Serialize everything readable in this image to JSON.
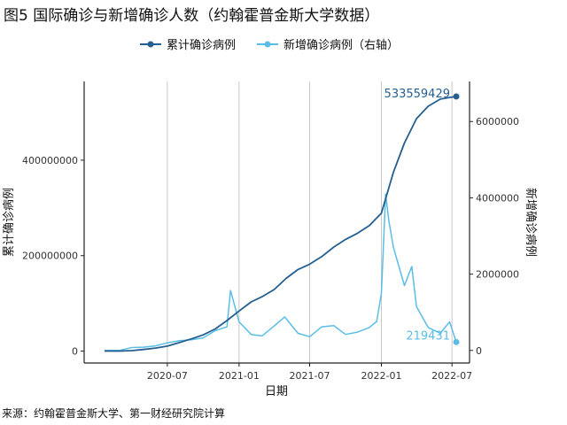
{
  "page": {
    "title": "图5 国际确诊与新增确诊人数（约翰霍普金斯大学数据）",
    "source": "来源：约翰霍普金斯大学、第一财经研究院计算"
  },
  "colors": {
    "cumulative": "#245f8f",
    "daily": "#5bbde6",
    "grid": "#c8c8c8",
    "axis": "#222222"
  },
  "chart_data": {
    "type": "line",
    "title": "",
    "xlabel": "日期",
    "ylabel_left": "累计确诊病例",
    "ylabel_right": "新增确诊病例",
    "x_range": [
      "2020-01-22",
      "2022-07-12"
    ],
    "x_ticks": [
      "2020-07",
      "2021-01",
      "2021-07",
      "2022-01",
      "2022-07"
    ],
    "y_left_ticks": [
      0,
      200000000,
      400000000
    ],
    "y_left_range": [
      -25000000,
      565000000
    ],
    "y_right_ticks": [
      0,
      2000000,
      4000000,
      6000000
    ],
    "y_right_range": [
      -330000,
      7050000
    ],
    "grid": "vertical",
    "legend": {
      "position": "top"
    },
    "legend_labels": [
      "累计确诊病例",
      "新增确诊病例（右轴）"
    ],
    "end_labels": {
      "cumulative": "533559429",
      "daily": "219431"
    },
    "series": [
      {
        "name": "累计确诊病例",
        "axis": "left",
        "points": [
          [
            "2020-01-22",
            0
          ],
          [
            "2020-03-01",
            90000
          ],
          [
            "2020-04-01",
            900000
          ],
          [
            "2020-05-01",
            3300000
          ],
          [
            "2020-06-01",
            6300000
          ],
          [
            "2020-07-01",
            10500000
          ],
          [
            "2020-08-01",
            17800000
          ],
          [
            "2020-09-01",
            25600000
          ],
          [
            "2020-10-01",
            34000000
          ],
          [
            "2020-11-01",
            46500000
          ],
          [
            "2020-12-01",
            64000000
          ],
          [
            "2021-01-01",
            84000000
          ],
          [
            "2021-02-01",
            103000000
          ],
          [
            "2021-03-01",
            114000000
          ],
          [
            "2021-04-01",
            129000000
          ],
          [
            "2021-05-01",
            152000000
          ],
          [
            "2021-06-01",
            171000000
          ],
          [
            "2021-07-01",
            182000000
          ],
          [
            "2021-08-01",
            198000000
          ],
          [
            "2021-09-01",
            218000000
          ],
          [
            "2021-10-01",
            234000000
          ],
          [
            "2021-11-01",
            247000000
          ],
          [
            "2021-12-01",
            263000000
          ],
          [
            "2022-01-01",
            289000000
          ],
          [
            "2022-02-01",
            375000000
          ],
          [
            "2022-03-01",
            436000000
          ],
          [
            "2022-04-01",
            487000000
          ],
          [
            "2022-05-01",
            513000000
          ],
          [
            "2022-06-01",
            528000000
          ],
          [
            "2022-07-12",
            533559429
          ]
        ]
      },
      {
        "name": "新增确诊病例",
        "axis": "right",
        "points": [
          [
            "2020-01-22",
            0
          ],
          [
            "2020-03-01",
            2000
          ],
          [
            "2020-04-01",
            75000
          ],
          [
            "2020-05-01",
            85000
          ],
          [
            "2020-06-01",
            120000
          ],
          [
            "2020-07-01",
            200000
          ],
          [
            "2020-08-01",
            255000
          ],
          [
            "2020-09-01",
            280000
          ],
          [
            "2020-10-01",
            330000
          ],
          [
            "2020-11-01",
            520000
          ],
          [
            "2020-12-01",
            620000
          ],
          [
            "2020-12-10",
            1570000
          ],
          [
            "2021-01-01",
            750000
          ],
          [
            "2021-02-01",
            420000
          ],
          [
            "2021-03-01",
            380000
          ],
          [
            "2021-04-01",
            640000
          ],
          [
            "2021-04-28",
            880000
          ],
          [
            "2021-06-01",
            450000
          ],
          [
            "2021-07-01",
            360000
          ],
          [
            "2021-08-01",
            620000
          ],
          [
            "2021-09-01",
            650000
          ],
          [
            "2021-10-01",
            420000
          ],
          [
            "2021-11-01",
            480000
          ],
          [
            "2021-12-01",
            600000
          ],
          [
            "2021-12-20",
            760000
          ],
          [
            "2022-01-01",
            1500000
          ],
          [
            "2022-01-12",
            4100000
          ],
          [
            "2022-01-20",
            3400000
          ],
          [
            "2022-02-01",
            2700000
          ],
          [
            "2022-03-01",
            1700000
          ],
          [
            "2022-03-20",
            2200000
          ],
          [
            "2022-04-01",
            1150000
          ],
          [
            "2022-05-01",
            600000
          ],
          [
            "2022-06-01",
            450000
          ],
          [
            "2022-06-25",
            750000
          ],
          [
            "2022-07-12",
            219431
          ]
        ]
      }
    ]
  }
}
